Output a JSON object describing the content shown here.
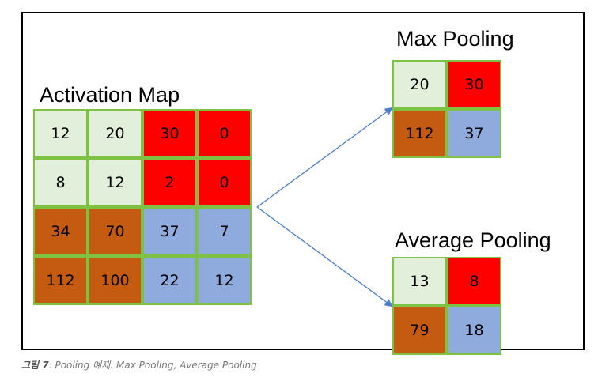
{
  "colors": {
    "light": "#e2efda",
    "red": "#ff0000",
    "brown": "#c55a11",
    "blue": "#8faadc",
    "cell_border": "#7dc242",
    "arrow": "#4a7ec7"
  },
  "activation_map": {
    "title": "Activation Map",
    "rows": [
      [
        {
          "v": "12",
          "c": "light"
        },
        {
          "v": "20",
          "c": "light"
        },
        {
          "v": "30",
          "c": "red"
        },
        {
          "v": "0",
          "c": "red"
        }
      ],
      [
        {
          "v": "8",
          "c": "light"
        },
        {
          "v": "12",
          "c": "light"
        },
        {
          "v": "2",
          "c": "red"
        },
        {
          "v": "0",
          "c": "red"
        }
      ],
      [
        {
          "v": "34",
          "c": "brown"
        },
        {
          "v": "70",
          "c": "brown"
        },
        {
          "v": "37",
          "c": "blue"
        },
        {
          "v": "7",
          "c": "blue"
        }
      ],
      [
        {
          "v": "112",
          "c": "brown"
        },
        {
          "v": "100",
          "c": "brown"
        },
        {
          "v": "22",
          "c": "blue"
        },
        {
          "v": "12",
          "c": "blue"
        }
      ]
    ]
  },
  "max_pooling": {
    "title": "Max Pooling",
    "rows": [
      [
        {
          "v": "20",
          "c": "light"
        },
        {
          "v": "30",
          "c": "red"
        }
      ],
      [
        {
          "v": "112",
          "c": "brown"
        },
        {
          "v": "37",
          "c": "blue"
        }
      ]
    ]
  },
  "average_pooling": {
    "title": "Average Pooling",
    "rows": [
      [
        {
          "v": "13",
          "c": "light"
        },
        {
          "v": "8",
          "c": "red"
        }
      ],
      [
        {
          "v": "79",
          "c": "brown"
        },
        {
          "v": "18",
          "c": "blue"
        }
      ]
    ]
  },
  "caption": {
    "label": "그림 7",
    "text": ": Pooling 예제: Max Pooling, Average Pooling"
  }
}
